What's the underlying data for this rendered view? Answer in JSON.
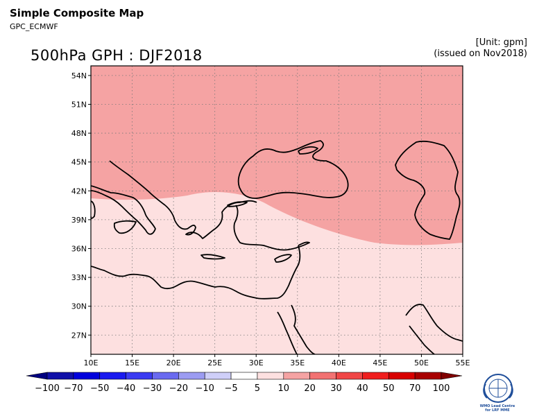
{
  "header": {
    "title": "Simple Composite Map",
    "subtitle": "GPC_ECMWF",
    "unit": "[Unit: gpm]",
    "issued": "(issued on Nov2018)"
  },
  "map": {
    "title": "500hPa GPH : DJF2018",
    "lon_range": [
      10,
      55
    ],
    "lat_range": [
      25,
      55
    ],
    "lon_ticks": [
      "10E",
      "15E",
      "20E",
      "25E",
      "30E",
      "35E",
      "40E",
      "45E",
      "50E",
      "55E"
    ],
    "lat_ticks": [
      "54N",
      "51N",
      "48N",
      "45N",
      "42N",
      "39N",
      "36N",
      "33N",
      "30N",
      "27N"
    ],
    "lon_tick_values": [
      10,
      15,
      20,
      25,
      30,
      35,
      40,
      45,
      50,
      55
    ],
    "lat_tick_values": [
      54,
      51,
      48,
      45,
      42,
      39,
      36,
      33,
      30,
      27
    ],
    "grid": "dotted",
    "fields": [
      {
        "range": "10 to 20",
        "color": "#f5a3a3",
        "region": "north"
      },
      {
        "range": "5 to 10",
        "color": "#fde0e0",
        "region": "south"
      }
    ]
  },
  "colorbar": {
    "labels": [
      "-100",
      "-70",
      "-50",
      "-40",
      "-30",
      "-20",
      "-10",
      "-5",
      "5",
      "10",
      "20",
      "30",
      "40",
      "50",
      "70",
      "100"
    ],
    "colors": [
      "#1010a8",
      "#0000dc",
      "#1a1aef",
      "#3b3bf2",
      "#6a6af0",
      "#9c9cf2",
      "#cfcff8",
      "#ffffff",
      "#fde0e0",
      "#f5a3a3",
      "#f27272",
      "#f04646",
      "#f01e1e",
      "#d80000",
      "#a80000"
    ],
    "low_end_color": "#000080",
    "high_end_color": "#800000"
  },
  "logo": {
    "icon": "wmo-emblem-icon",
    "text": "WMO Lead Centre for LRF MME"
  }
}
